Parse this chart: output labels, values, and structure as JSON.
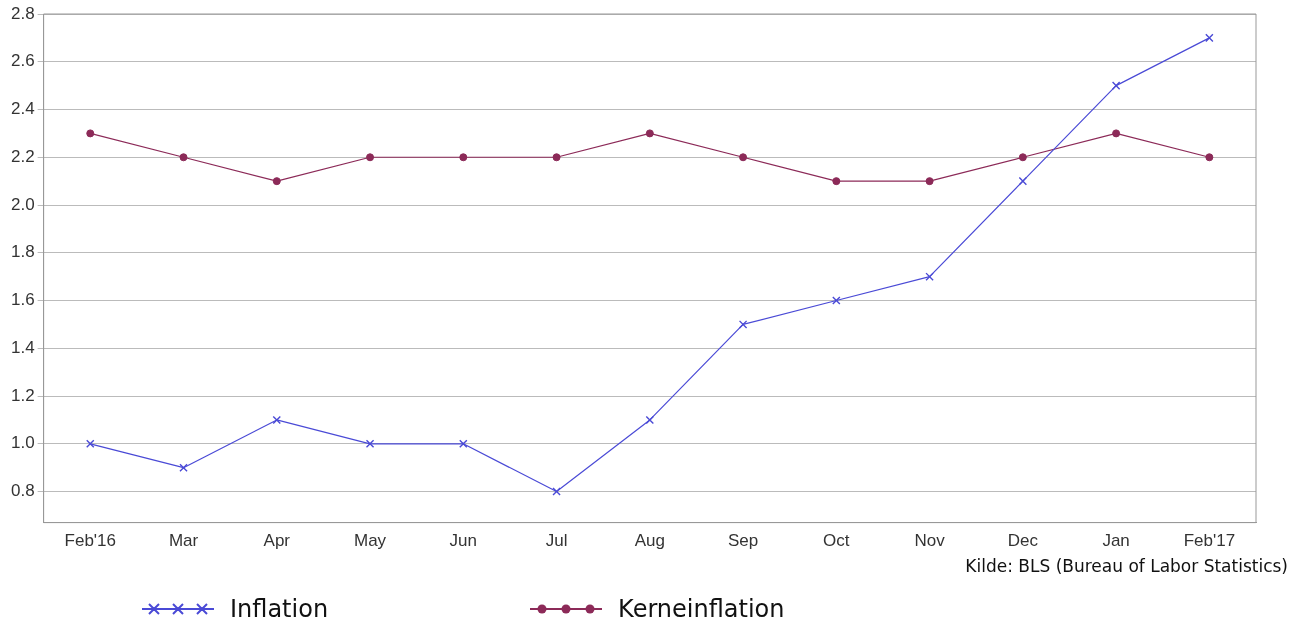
{
  "chart_data": {
    "type": "line",
    "categories": [
      "Feb'16",
      "Mar",
      "Apr",
      "May",
      "Jun",
      "Jul",
      "Aug",
      "Sep",
      "Oct",
      "Nov",
      "Dec",
      "Jan",
      "Feb'17"
    ],
    "series": [
      {
        "name": "Inflation",
        "color": "#4a4ad6",
        "marker": "cross",
        "values": [
          1.0,
          0.9,
          1.1,
          1.0,
          1.0,
          0.8,
          1.1,
          1.5,
          1.6,
          1.7,
          2.1,
          2.5,
          2.7
        ]
      },
      {
        "name": "Kerneinflation",
        "color": "#8c2a58",
        "marker": "circle",
        "values": [
          2.3,
          2.2,
          2.1,
          2.2,
          2.2,
          2.2,
          2.3,
          2.2,
          2.1,
          2.1,
          2.2,
          2.3,
          2.2
        ]
      }
    ],
    "ylim": [
      0.67,
      2.8
    ],
    "yticks": [
      {
        "value": 0.8,
        "label": "0.8"
      },
      {
        "value": 1.0,
        "label": "1.0"
      },
      {
        "value": 1.2,
        "label": "1.2"
      },
      {
        "value": 1.4,
        "label": "1.4"
      },
      {
        "value": 1.6,
        "label": "1.6"
      },
      {
        "value": 1.8,
        "label": "1.8"
      },
      {
        "value": 2.0,
        "label": "2.0"
      },
      {
        "value": 2.2,
        "label": "2.2"
      },
      {
        "value": 2.4,
        "label": "2.4"
      },
      {
        "value": 2.6,
        "label": "2.6"
      },
      {
        "value": 2.8,
        "label": "2.8"
      }
    ],
    "grid": "y",
    "legend": "bottom",
    "annotations": [
      "Kilde: BLS (Bureau of Labor Statistics)"
    ]
  }
}
